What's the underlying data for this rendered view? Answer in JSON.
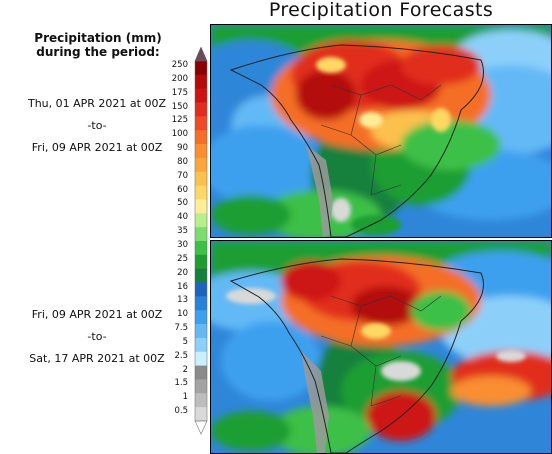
{
  "title": "Precipitation Forecasts",
  "legend": {
    "title_line1": "Precipitation (mm)",
    "title_line2": "during the period:",
    "levels": [
      "250",
      "200",
      "175",
      "150",
      "125",
      "100",
      "90",
      "80",
      "70",
      "60",
      "50",
      "40",
      "35",
      "30",
      "25",
      "20",
      "16",
      "13",
      "10",
      "7.5",
      "5",
      "2.5",
      "2",
      "1.5",
      "1",
      "0.5"
    ],
    "colors": [
      "#8b0000",
      "#b40a0a",
      "#cd1414",
      "#e12d1e",
      "#ee4a28",
      "#f56e28",
      "#f98e32",
      "#fba63c",
      "#fcc04e",
      "#fdd864",
      "#fdee96",
      "#b6f08a",
      "#7ddc6e",
      "#3cc046",
      "#1e9e32",
      "#14803c",
      "#1e64be",
      "#2882dc",
      "#3ca0ef",
      "#64b9f5",
      "#8cd0fa",
      "#c8f0ff",
      "#8a8a8a",
      "#a3a3a3",
      "#bdbdbd",
      "#d9d9d9"
    ],
    "top_arrow_color": "#6b4b5a"
  },
  "periods": [
    {
      "start": "Thu, 01 APR 2021 at 00Z",
      "sep": "-to-",
      "end": "Fri, 09 APR 2021 at 00Z"
    },
    {
      "start": "Fri, 09 APR 2021 at 00Z",
      "sep": "-to-",
      "end": "Sat, 17 APR 2021 at 00Z"
    }
  ]
}
